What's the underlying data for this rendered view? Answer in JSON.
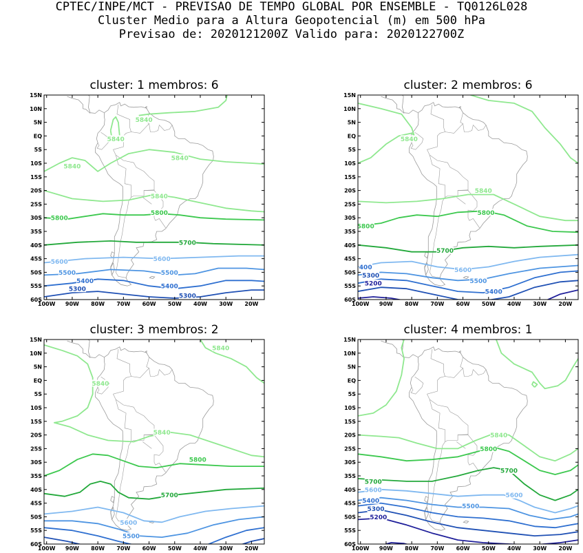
{
  "header": {
    "line1": "CPTEC/INPE/MCT - PREVISAO DE TEMPO GLOBAL POR ENSEMBLE - TQ0126L028",
    "line2": "Cluster Medio para a Altura Geopotencial (m) em 500 hPa",
    "line3": "Previsao de: 2020121200Z   Valido para: 2020122700Z"
  },
  "lat_ticks": [
    "15N",
    "10N",
    "5N",
    "EQ",
    "5S",
    "10S",
    "15S",
    "20S",
    "25S",
    "30S",
    "35S",
    "40S",
    "45S",
    "50S",
    "55S",
    "60S"
  ],
  "lon_ticks": [
    "100W",
    "90W",
    "80W",
    "70W",
    "60W",
    "50W",
    "40W",
    "30W",
    "20W"
  ],
  "colors": {
    "c5200": "#1f1f9a",
    "c5300": "#1f50b4",
    "c5400": "#2e6fd0",
    "c5500": "#4d94e2",
    "c5600": "#7fb8f0",
    "c5700": "#22a83a",
    "c5800": "#3cc84e",
    "c5840": "#8fe88f",
    "coast": "#9a9a9a"
  },
  "panels": [
    {
      "title": "cluster: 1   membros: 6",
      "labels": [
        {
          "text": "5840",
          "lon": -62,
          "lat": 6
        },
        {
          "text": "5840",
          "lon": -73,
          "lat": -1
        },
        {
          "text": "5840",
          "lon": -48,
          "lat": -8
        },
        {
          "text": "5840",
          "lon": -90,
          "lat": -11
        },
        {
          "text": "5840",
          "lon": -56,
          "lat": -22
        },
        {
          "text": "5800",
          "lon": -95,
          "lat": -30
        },
        {
          "text": "5800",
          "lon": -56,
          "lat": -28
        },
        {
          "text": "5700",
          "lon": -45,
          "lat": -39
        },
        {
          "text": "5600",
          "lon": -95,
          "lat": -46
        },
        {
          "text": "5600",
          "lon": -55,
          "lat": -45
        },
        {
          "text": "5500",
          "lon": -92,
          "lat": -50
        },
        {
          "text": "5500",
          "lon": -52,
          "lat": -50
        },
        {
          "text": "5400",
          "lon": -85,
          "lat": -53
        },
        {
          "text": "5400",
          "lon": -52,
          "lat": -55
        },
        {
          "text": "5300",
          "lon": -88,
          "lat": -56
        },
        {
          "text": "5300",
          "lon": -45,
          "lat": -58.5
        }
      ]
    },
    {
      "title": "cluster: 2   membros: 6",
      "labels": [
        {
          "text": "5840",
          "lon": -81,
          "lat": -1
        },
        {
          "text": "5840",
          "lon": -52,
          "lat": -20
        },
        {
          "text": "5800",
          "lon": -98,
          "lat": -33
        },
        {
          "text": "5800",
          "lon": -51,
          "lat": -28
        },
        {
          "text": "5700",
          "lon": -67,
          "lat": -42
        },
        {
          "text": "5600",
          "lon": -60,
          "lat": -49
        },
        {
          "text": "5500",
          "lon": -54,
          "lat": -53
        },
        {
          "text": "5400",
          "lon": -48,
          "lat": -57
        },
        {
          "text": "400",
          "lon": -98,
          "lat": -48
        },
        {
          "text": "5300",
          "lon": -96,
          "lat": -51
        },
        {
          "text": "5200",
          "lon": -95,
          "lat": -54
        }
      ]
    },
    {
      "title": "cluster: 3   membros: 2",
      "labels": [
        {
          "text": "5840",
          "lon": -32,
          "lat": 12
        },
        {
          "text": "5840",
          "lon": -79,
          "lat": -1
        },
        {
          "text": "5840",
          "lon": -55,
          "lat": -19
        },
        {
          "text": "5800",
          "lon": -41,
          "lat": -29
        },
        {
          "text": "5700",
          "lon": -52,
          "lat": -42
        },
        {
          "text": "5600",
          "lon": -68,
          "lat": -52
        },
        {
          "text": "5500",
          "lon": -67,
          "lat": -57
        }
      ]
    },
    {
      "title": "cluster: 4   membros: 1",
      "labels": [
        {
          "text": "5840",
          "lon": -46,
          "lat": -20
        },
        {
          "text": "5800",
          "lon": -50,
          "lat": -25
        },
        {
          "text": "5700",
          "lon": -95,
          "lat": -37
        },
        {
          "text": "5700",
          "lon": -42,
          "lat": -33
        },
        {
          "text": "5600",
          "lon": -95,
          "lat": -40
        },
        {
          "text": "5600",
          "lon": -40,
          "lat": -42
        },
        {
          "text": "5500",
          "lon": -57,
          "lat": -46
        },
        {
          "text": "5400",
          "lon": -96,
          "lat": -44
        },
        {
          "text": "5300",
          "lon": -94,
          "lat": -47
        },
        {
          "text": "5200",
          "lon": -93,
          "lat": -50
        }
      ]
    }
  ]
}
